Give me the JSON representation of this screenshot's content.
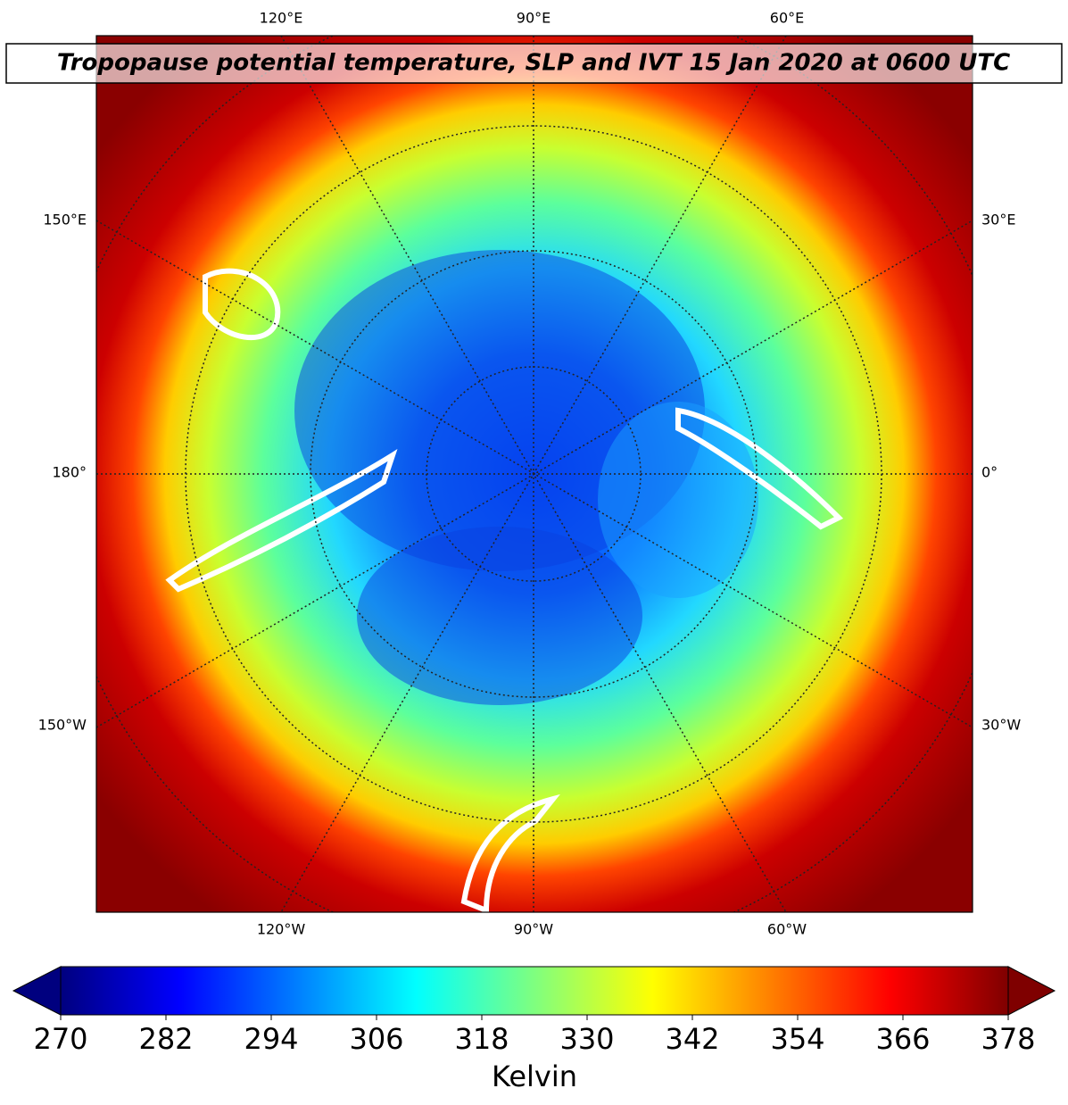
{
  "map": {
    "title": "Tropopause potential temperature, SLP and IVT 15 Jan 2020 at 0600 UTC",
    "top_labels": [
      "120°E",
      "90°E",
      "60°E"
    ],
    "bottom_labels": [
      "120°W",
      "90°W",
      "60°W"
    ],
    "left_labels": [
      "150°E",
      "180°",
      "150°W"
    ],
    "right_labels": [
      "30°E",
      "0°",
      "30°W"
    ]
  },
  "colorbar": {
    "label": "Kelvin",
    "lim": [
      270,
      378
    ],
    "ticks": [
      270,
      282,
      294,
      306,
      318,
      330,
      342,
      354,
      366,
      378
    ],
    "colormap": "jet",
    "extend": "both"
  }
}
